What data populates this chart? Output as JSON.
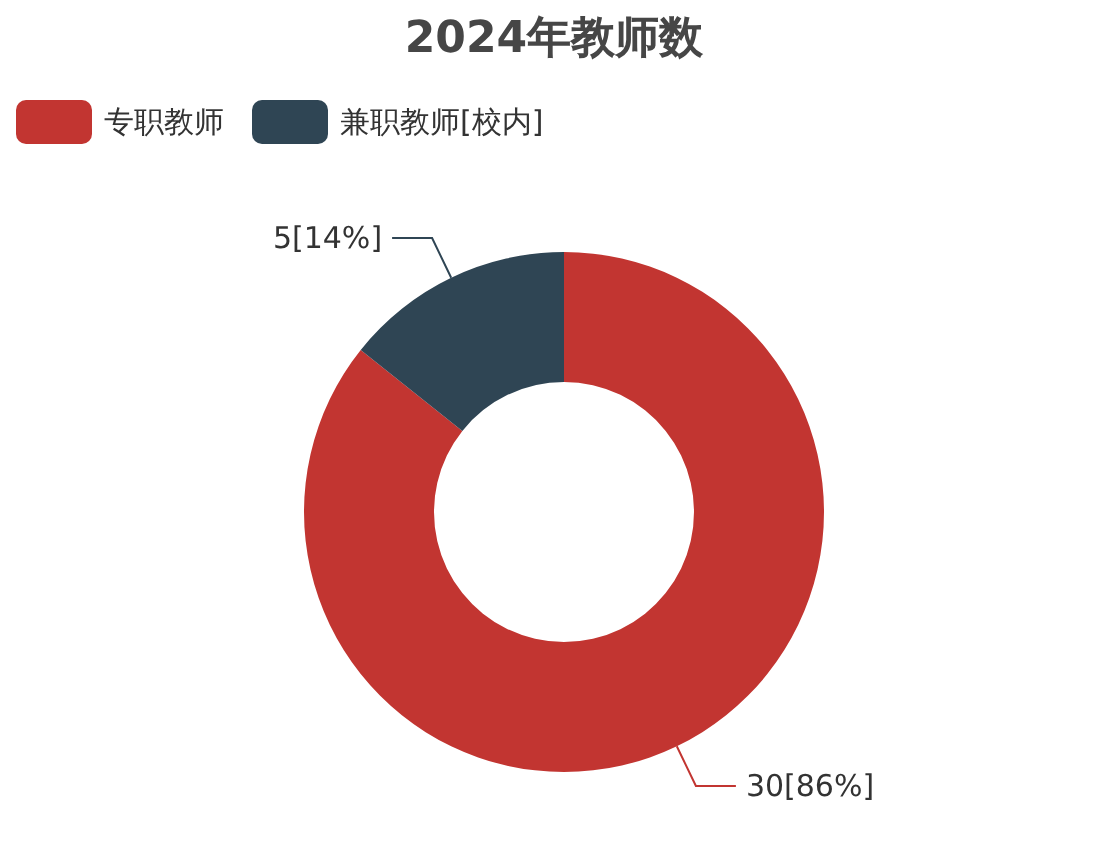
{
  "chart_data": {
    "type": "donut",
    "title": "2024年教师数",
    "categories": [
      "专职教师",
      "兼职教师[校内]"
    ],
    "values": [
      30,
      5
    ],
    "colors": [
      "#c23531",
      "#2f4554"
    ],
    "value_labels": [
      "30[86%]",
      "5[14%]"
    ],
    "legend": "top left"
  }
}
